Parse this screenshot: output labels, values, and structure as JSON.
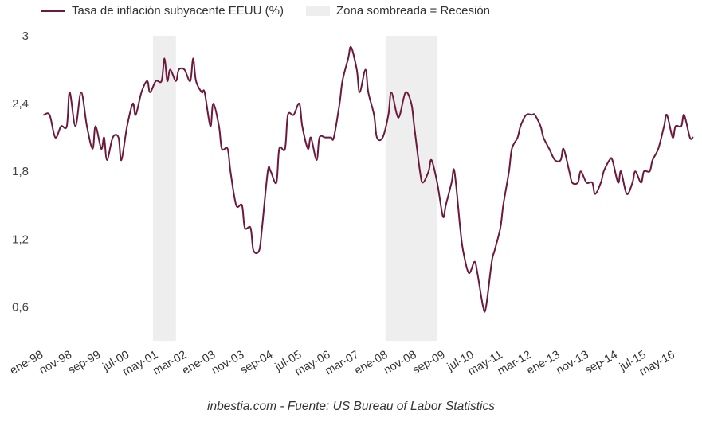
{
  "chart_data": {
    "type": "line",
    "title": "",
    "xlabel": "",
    "ylabel": "",
    "ylim": [
      0.3,
      3.0
    ],
    "yticks": [
      "3",
      "2,4",
      "1,8",
      "1,2",
      "0,6"
    ],
    "ytick_values": [
      3.0,
      2.4,
      1.8,
      1.2,
      0.6
    ],
    "xlim": [
      "1998-01",
      "2016-12"
    ],
    "xticks": [
      "ene-98",
      "nov-98",
      "sep-99",
      "jul-00",
      "may-01",
      "mar-02",
      "ene-03",
      "nov-03",
      "sep-04",
      "jul-05",
      "may-06",
      "mar-07",
      "ene-08",
      "nov-08",
      "sep-09",
      "jul-10",
      "may-11",
      "mar-12",
      "ene-13",
      "nov-13",
      "sep-14",
      "jul-15",
      "may-16"
    ],
    "xtick_dates": [
      "1998-01",
      "1998-11",
      "1999-09",
      "2000-07",
      "2001-05",
      "2002-03",
      "2003-01",
      "2003-11",
      "2004-09",
      "2005-07",
      "2006-05",
      "2007-03",
      "2008-01",
      "2008-11",
      "2009-09",
      "2010-07",
      "2011-05",
      "2012-03",
      "2013-01",
      "2013-11",
      "2014-09",
      "2015-07",
      "2016-05"
    ],
    "series": [
      {
        "name": "Tasa de inflación subyacente EEUU (%)",
        "color": "#6b1a3d",
        "points": [
          [
            "1998-01",
            2.3
          ],
          [
            "1998-03",
            2.3
          ],
          [
            "1998-05",
            2.1
          ],
          [
            "1998-07",
            2.2
          ],
          [
            "1998-09",
            2.2
          ],
          [
            "1998-10",
            2.5
          ],
          [
            "1998-12",
            2.2
          ],
          [
            "1999-02",
            2.5
          ],
          [
            "1999-04",
            2.2
          ],
          [
            "1999-06",
            2.0
          ],
          [
            "1999-07",
            2.2
          ],
          [
            "1999-09",
            2.0
          ],
          [
            "1999-10",
            2.1
          ],
          [
            "1999-11",
            1.9
          ],
          [
            "2000-01",
            2.1
          ],
          [
            "2000-03",
            2.1
          ],
          [
            "2000-04",
            1.9
          ],
          [
            "2000-06",
            2.2
          ],
          [
            "2000-08",
            2.4
          ],
          [
            "2000-09",
            2.3
          ],
          [
            "2000-11",
            2.5
          ],
          [
            "2001-01",
            2.6
          ],
          [
            "2001-02",
            2.5
          ],
          [
            "2001-04",
            2.6
          ],
          [
            "2001-06",
            2.6
          ],
          [
            "2001-07",
            2.8
          ],
          [
            "2001-08",
            2.6
          ],
          [
            "2001-09",
            2.7
          ],
          [
            "2001-11",
            2.6
          ],
          [
            "2001-12",
            2.7
          ],
          [
            "2002-02",
            2.7
          ],
          [
            "2002-04",
            2.6
          ],
          [
            "2002-05",
            2.8
          ],
          [
            "2002-06",
            2.6
          ],
          [
            "2002-08",
            2.5
          ],
          [
            "2002-09",
            2.5
          ],
          [
            "2002-11",
            2.2
          ],
          [
            "2002-12",
            2.4
          ],
          [
            "2003-02",
            2.2
          ],
          [
            "2003-03",
            2.0
          ],
          [
            "2003-05",
            2.0
          ],
          [
            "2003-06",
            1.8
          ],
          [
            "2003-08",
            1.5
          ],
          [
            "2003-10",
            1.5
          ],
          [
            "2003-11",
            1.3
          ],
          [
            "2004-01",
            1.3
          ],
          [
            "2004-02",
            1.1
          ],
          [
            "2004-04",
            1.1
          ],
          [
            "2004-05",
            1.3
          ],
          [
            "2004-07",
            1.8
          ],
          [
            "2004-08",
            1.8
          ],
          [
            "2004-10",
            1.7
          ],
          [
            "2004-11",
            2.0
          ],
          [
            "2005-01",
            2.0
          ],
          [
            "2005-02",
            2.3
          ],
          [
            "2005-04",
            2.3
          ],
          [
            "2005-06",
            2.4
          ],
          [
            "2005-07",
            2.2
          ],
          [
            "2005-09",
            2.0
          ],
          [
            "2005-10",
            2.1
          ],
          [
            "2005-12",
            1.9
          ],
          [
            "2006-01",
            2.1
          ],
          [
            "2006-03",
            2.1
          ],
          [
            "2006-05",
            2.1
          ],
          [
            "2006-06",
            2.1
          ],
          [
            "2006-08",
            2.4
          ],
          [
            "2006-09",
            2.6
          ],
          [
            "2006-11",
            2.8
          ],
          [
            "2006-12",
            2.9
          ],
          [
            "2007-02",
            2.7
          ],
          [
            "2007-03",
            2.5
          ],
          [
            "2007-05",
            2.7
          ],
          [
            "2007-06",
            2.5
          ],
          [
            "2007-08",
            2.3
          ],
          [
            "2007-09",
            2.1
          ],
          [
            "2007-11",
            2.1
          ],
          [
            "2008-01",
            2.3
          ],
          [
            "2008-02",
            2.5
          ],
          [
            "2008-04",
            2.3
          ],
          [
            "2008-05",
            2.3
          ],
          [
            "2008-07",
            2.5
          ],
          [
            "2008-09",
            2.4
          ],
          [
            "2008-10",
            2.2
          ],
          [
            "2008-12",
            1.8
          ],
          [
            "2009-01",
            1.7
          ],
          [
            "2009-03",
            1.8
          ],
          [
            "2009-04",
            1.9
          ],
          [
            "2009-06",
            1.7
          ],
          [
            "2009-08",
            1.4
          ],
          [
            "2009-09",
            1.5
          ],
          [
            "2009-11",
            1.7
          ],
          [
            "2009-12",
            1.8
          ],
          [
            "2010-02",
            1.3
          ],
          [
            "2010-03",
            1.1
          ],
          [
            "2010-05",
            0.9
          ],
          [
            "2010-07",
            1.0
          ],
          [
            "2010-08",
            0.9
          ],
          [
            "2010-10",
            0.6
          ],
          [
            "2010-11",
            0.6
          ],
          [
            "2011-01",
            1.0
          ],
          [
            "2011-02",
            1.1
          ],
          [
            "2011-04",
            1.3
          ],
          [
            "2011-05",
            1.5
          ],
          [
            "2011-07",
            1.8
          ],
          [
            "2011-08",
            2.0
          ],
          [
            "2011-10",
            2.1
          ],
          [
            "2011-11",
            2.2
          ],
          [
            "2012-01",
            2.3
          ],
          [
            "2012-03",
            2.3
          ],
          [
            "2012-04",
            2.3
          ],
          [
            "2012-06",
            2.2
          ],
          [
            "2012-07",
            2.1
          ],
          [
            "2012-09",
            2.0
          ],
          [
            "2012-11",
            1.9
          ],
          [
            "2013-01",
            1.9
          ],
          [
            "2013-02",
            2.0
          ],
          [
            "2013-04",
            1.8
          ],
          [
            "2013-05",
            1.7
          ],
          [
            "2013-07",
            1.7
          ],
          [
            "2013-08",
            1.8
          ],
          [
            "2013-10",
            1.7
          ],
          [
            "2013-12",
            1.7
          ],
          [
            "2014-01",
            1.6
          ],
          [
            "2014-03",
            1.7
          ],
          [
            "2014-04",
            1.8
          ],
          [
            "2014-06",
            1.9
          ],
          [
            "2014-07",
            1.9
          ],
          [
            "2014-09",
            1.7
          ],
          [
            "2014-10",
            1.8
          ],
          [
            "2014-12",
            1.6
          ],
          [
            "2015-02",
            1.7
          ],
          [
            "2015-03",
            1.8
          ],
          [
            "2015-05",
            1.7
          ],
          [
            "2015-06",
            1.8
          ],
          [
            "2015-08",
            1.8
          ],
          [
            "2015-09",
            1.9
          ],
          [
            "2015-11",
            2.0
          ],
          [
            "2016-01",
            2.2
          ],
          [
            "2016-02",
            2.3
          ],
          [
            "2016-04",
            2.1
          ],
          [
            "2016-05",
            2.2
          ],
          [
            "2016-07",
            2.2
          ],
          [
            "2016-08",
            2.3
          ],
          [
            "2016-10",
            2.1
          ],
          [
            "2016-11",
            2.1
          ]
        ]
      }
    ],
    "recessions": [
      {
        "name": "Zona sombreada = Recesión",
        "start": "2001-03",
        "end": "2001-11",
        "color": "#eeeeee"
      },
      {
        "name": "Zona sombreada = Recesión",
        "start": "2007-12",
        "end": "2009-06",
        "color": "#eeeeee"
      }
    ],
    "grid": false,
    "legend_position": "top-left"
  },
  "legend": {
    "series_label": "Tasa de inflación subyacente EEUU (%)",
    "series_color": "#6b1a3d",
    "shade_label": "Zona sombreada = Recesión",
    "shade_color": "#eeeeee"
  },
  "source": "inbestia.com - Fuente: US Bureau of Labor Statistics"
}
